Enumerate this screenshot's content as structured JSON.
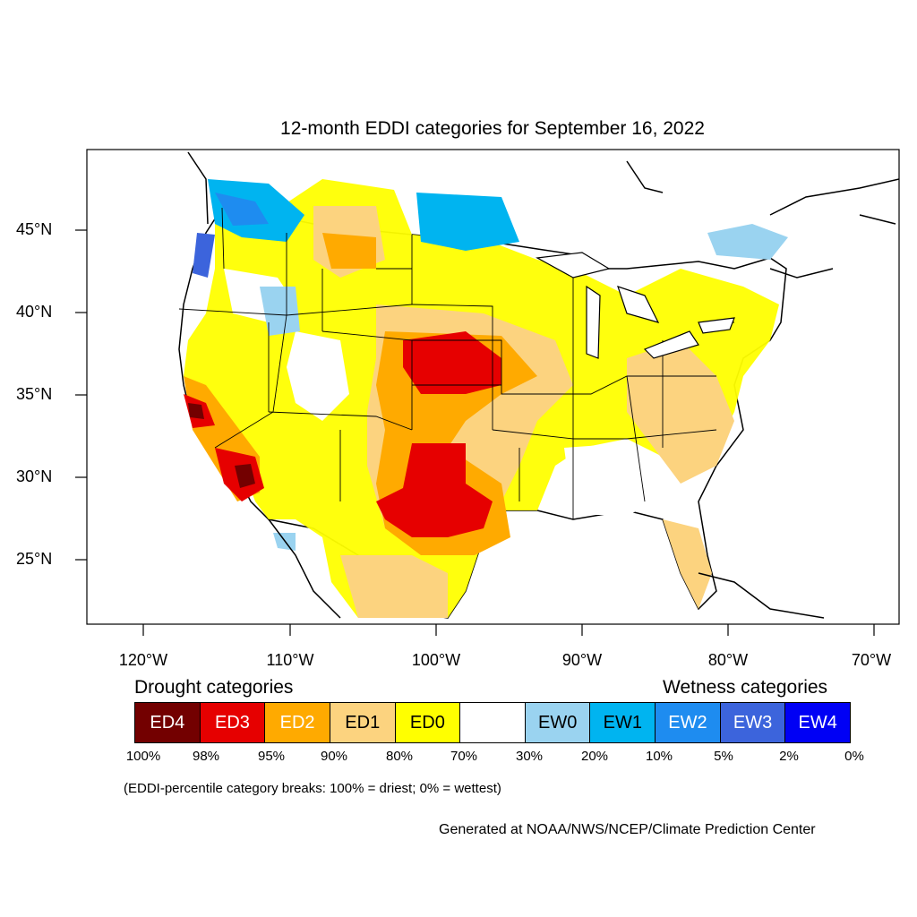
{
  "title": "12-month EDDI categories for September 16, 2022",
  "lat_labels": [
    "45°N",
    "40°N",
    "35°N",
    "30°N",
    "25°N"
  ],
  "lon_labels": [
    "120°W",
    "110°W",
    "100°W",
    "90°W",
    "80°W",
    "70°W"
  ],
  "drought_heading": "Drought categories",
  "wetness_heading": "Wetness categories",
  "legend": [
    {
      "label": "ED4",
      "color": "#730000",
      "text_color": "#ffffff"
    },
    {
      "label": "ED3",
      "color": "#e60000",
      "text_color": "#ffffff"
    },
    {
      "label": "ED2",
      "color": "#ffaa00",
      "text_color": "#ffffff"
    },
    {
      "label": "ED1",
      "color": "#fcd37f",
      "text_color": "#000000"
    },
    {
      "label": "ED0",
      "color": "#ffff00",
      "text_color": "#000000"
    },
    {
      "label": "",
      "color": "#ffffff",
      "text_color": "#000000"
    },
    {
      "label": "EW0",
      "color": "#9ad3f0",
      "text_color": "#000000"
    },
    {
      "label": "EW1",
      "color": "#00b4f0",
      "text_color": "#000000"
    },
    {
      "label": "EW2",
      "color": "#1e8cf0",
      "text_color": "#ffffff"
    },
    {
      "label": "EW3",
      "color": "#3c64dc",
      "text_color": "#ffffff"
    },
    {
      "label": "EW4",
      "color": "#0000f5",
      "text_color": "#ffffff"
    }
  ],
  "percent_breaks": [
    "100%",
    "98%",
    "95%",
    "90%",
    "80%",
    "70%",
    "30%",
    "20%",
    "10%",
    "5%",
    "2%",
    "0%"
  ],
  "note": "(EDDI-percentile category breaks: 100% = driest; 0% = wettest)",
  "credit": "Generated at NOAA/NWS/NCEP/Climate Prediction Center"
}
